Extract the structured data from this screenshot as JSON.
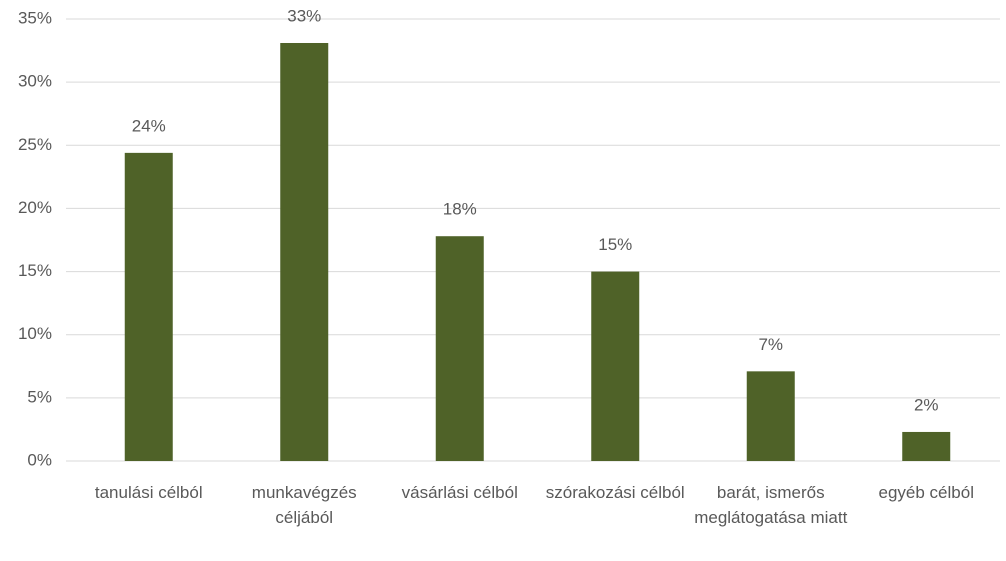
{
  "chart_data": {
    "type": "bar",
    "categories": [
      "tanulási célból",
      "munkavégzés céljából",
      "vásárlási célból",
      "szórakozási célból",
      "barát, ismerős meglátogatása miatt",
      "egyéb célból"
    ],
    "values": [
      24.4,
      33.1,
      17.8,
      15.0,
      7.1,
      2.3
    ],
    "value_labels": [
      "24%",
      "33%",
      "18%",
      "15%",
      "7%",
      "2%"
    ],
    "color": "#4f6228",
    "ylim": [
      0,
      35
    ],
    "yticks": [
      {
        "value": 0,
        "label": "0%"
      },
      {
        "value": 5,
        "label": "5%"
      },
      {
        "value": 10,
        "label": "10%"
      },
      {
        "value": 15,
        "label": "15%"
      },
      {
        "value": 20,
        "label": "20%"
      },
      {
        "value": 25,
        "label": "25%"
      },
      {
        "value": 30,
        "label": "30%"
      },
      {
        "value": 35,
        "label": "35%"
      }
    ],
    "grid": true
  }
}
